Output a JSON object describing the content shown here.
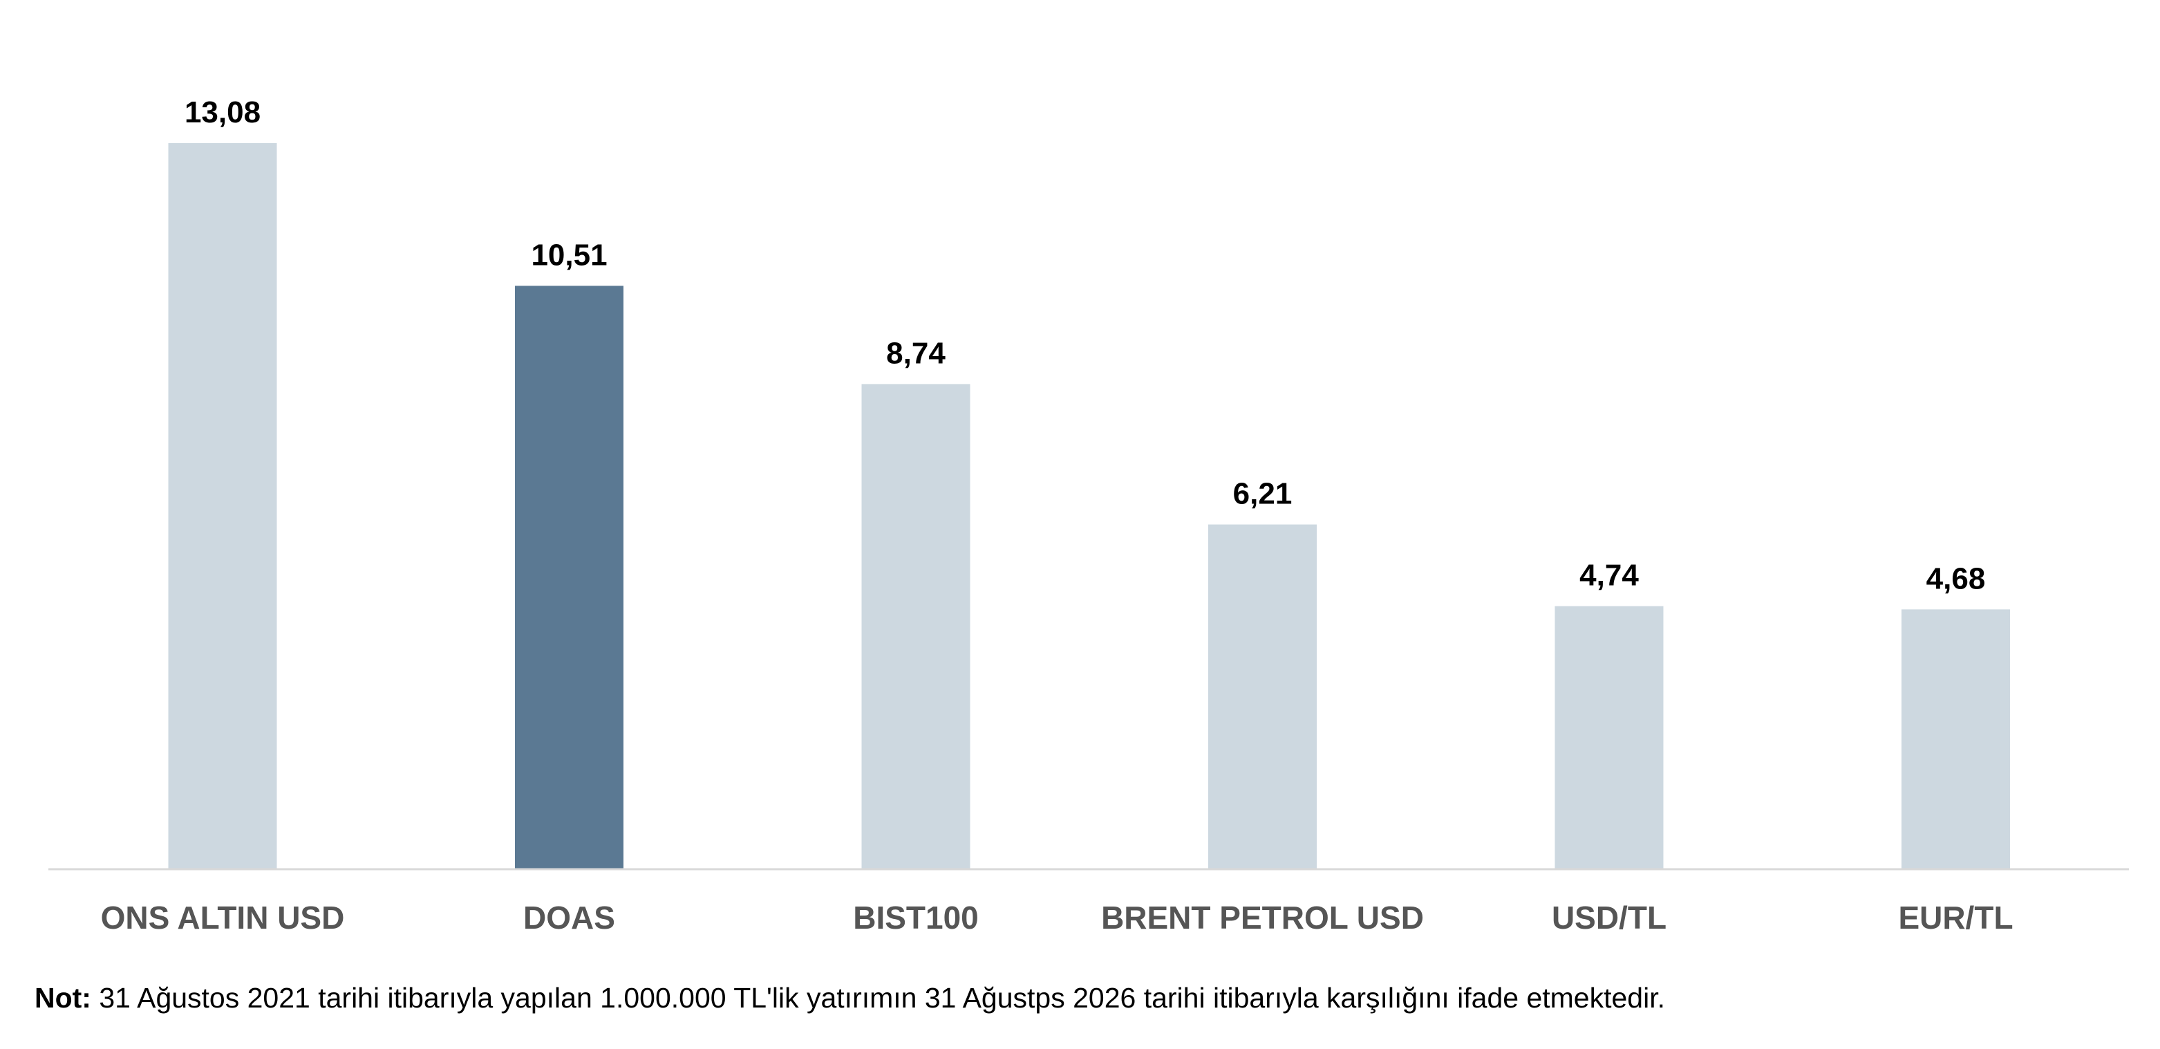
{
  "chart_data": {
    "type": "bar",
    "title": "",
    "xlabel": "",
    "ylabel": "",
    "ylim": [
      0,
      13.08
    ],
    "grid": false,
    "legend": "none",
    "categories": [
      "ONS ALTIN USD",
      "DOAS",
      "BIST100",
      "BRENT PETROL USD",
      "USD/TL",
      "EUR/TL"
    ],
    "values": [
      13.08,
      10.51,
      8.74,
      6.21,
      4.74,
      4.68
    ],
    "value_labels": [
      "13,08",
      "10,51",
      "8,74",
      "6,21",
      "4,74",
      "4,68"
    ],
    "highlight_category": "DOAS",
    "colors": {
      "default_bar": "#cdd8e0",
      "highlight_bar": "#5b7993",
      "axis": "#d9d9d9",
      "category_text": "#555555",
      "value_text": "#000000"
    }
  },
  "note": {
    "label": "Not:",
    "text": " 31 Ağustos 2021 tarihi itibarıyla yapılan 1.000.000 TL'lik yatırımın 31 Ağustps 2026 tarihi itibarıyla karşılığını ifade etmektedir."
  }
}
